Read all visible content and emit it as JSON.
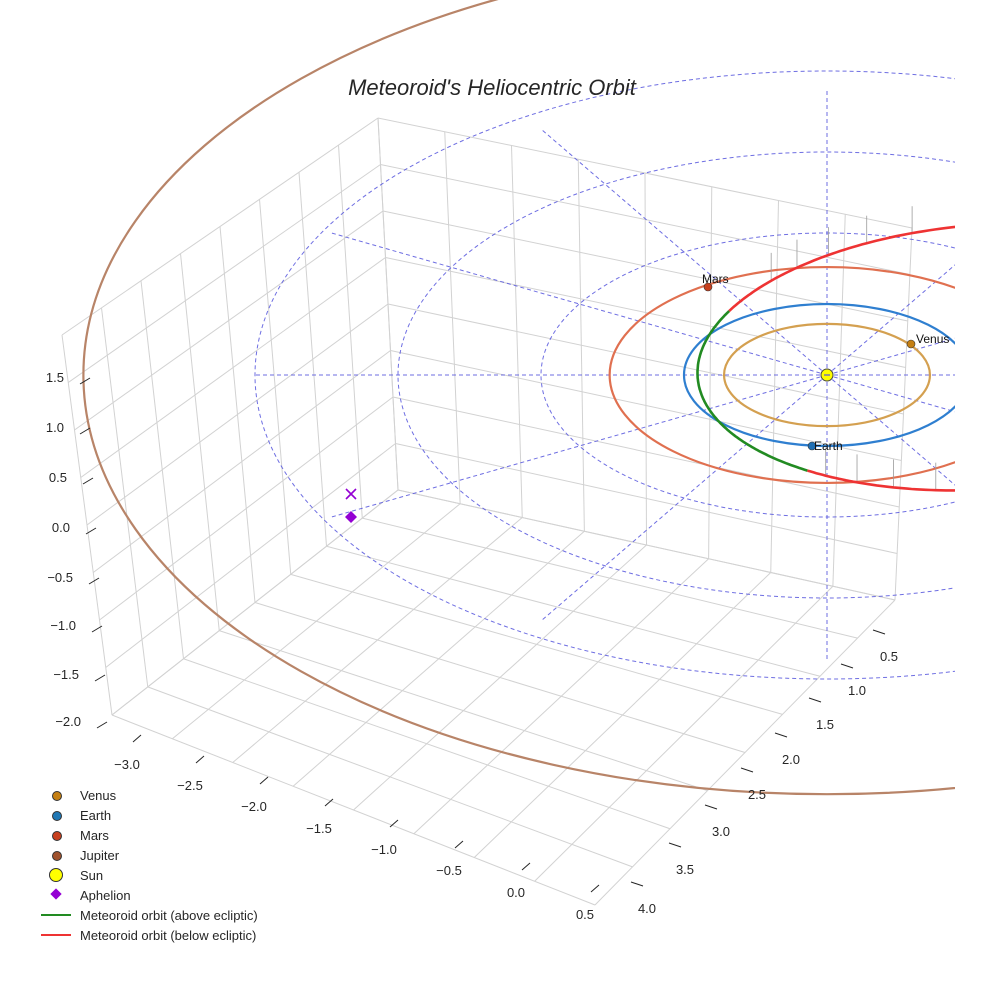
{
  "chart_data": {
    "type": "scatter3d",
    "title": "Meteoroid's Heliocentric Orbit",
    "axes": {
      "x": {
        "ticks": [
          "−3.0",
          "−2.5",
          "−2.0",
          "−1.5",
          "−1.0",
          "−0.5",
          "0.0",
          "0.5"
        ],
        "range": [
          -3.3,
          0.7
        ]
      },
      "y": {
        "ticks": [
          "0.5",
          "1.0",
          "1.5",
          "2.0",
          "2.5",
          "3.0",
          "3.5",
          "4.0"
        ],
        "range": [
          0.2,
          4.2
        ]
      },
      "z": {
        "ticks": [
          "1.5",
          "1.0",
          "0.5",
          "0.0",
          "−0.5",
          "−1.0",
          "−1.5",
          "−2.0"
        ],
        "range": [
          -2.1,
          1.9
        ]
      }
    },
    "grid": true,
    "planets": [
      {
        "name": "Venus",
        "orbit_radius_au": 0.72,
        "color": "#d4a050",
        "marker_color": "#c57f12",
        "label": "Venus"
      },
      {
        "name": "Earth",
        "orbit_radius_au": 1.0,
        "color": "#2f7fd0",
        "marker_color": "#1f6fb4",
        "label": "Earth"
      },
      {
        "name": "Mars",
        "orbit_radius_au": 1.52,
        "color": "#e07050",
        "marker_color": "#c8401e",
        "label": "Mars"
      },
      {
        "name": "Jupiter",
        "orbit_radius_au": 5.2,
        "color": "#b88468",
        "marker_color": "#a0522d",
        "label": ""
      }
    ],
    "sun": {
      "color": "#ffff00"
    },
    "meteoroid": {
      "above_color": "#228b22",
      "below_color": "#ee3333",
      "aphelion_color": "#9400d3",
      "perihelion_au": 0.9,
      "aphelion_au": 3.2
    },
    "legend": {
      "position": "bottom-left",
      "entries": [
        {
          "label": "Venus",
          "kind": "dot",
          "color": "#c57f12"
        },
        {
          "label": "Earth",
          "kind": "dot",
          "color": "#1f77b4"
        },
        {
          "label": "Mars",
          "kind": "dot",
          "color": "#c8401e"
        },
        {
          "label": "Jupiter",
          "kind": "dot",
          "color": "#a0522d"
        },
        {
          "label": "Sun",
          "kind": "sun",
          "color": "#ffff00"
        },
        {
          "label": "Aphelion",
          "kind": "diamond",
          "color": "#9400d3"
        },
        {
          "label": "Meteoroid orbit (above ecliptic)",
          "kind": "line",
          "color": "#228b22"
        },
        {
          "label": "Meteoroid orbit (below ecliptic)",
          "kind": "line",
          "color": "#ee3333"
        }
      ]
    }
  }
}
